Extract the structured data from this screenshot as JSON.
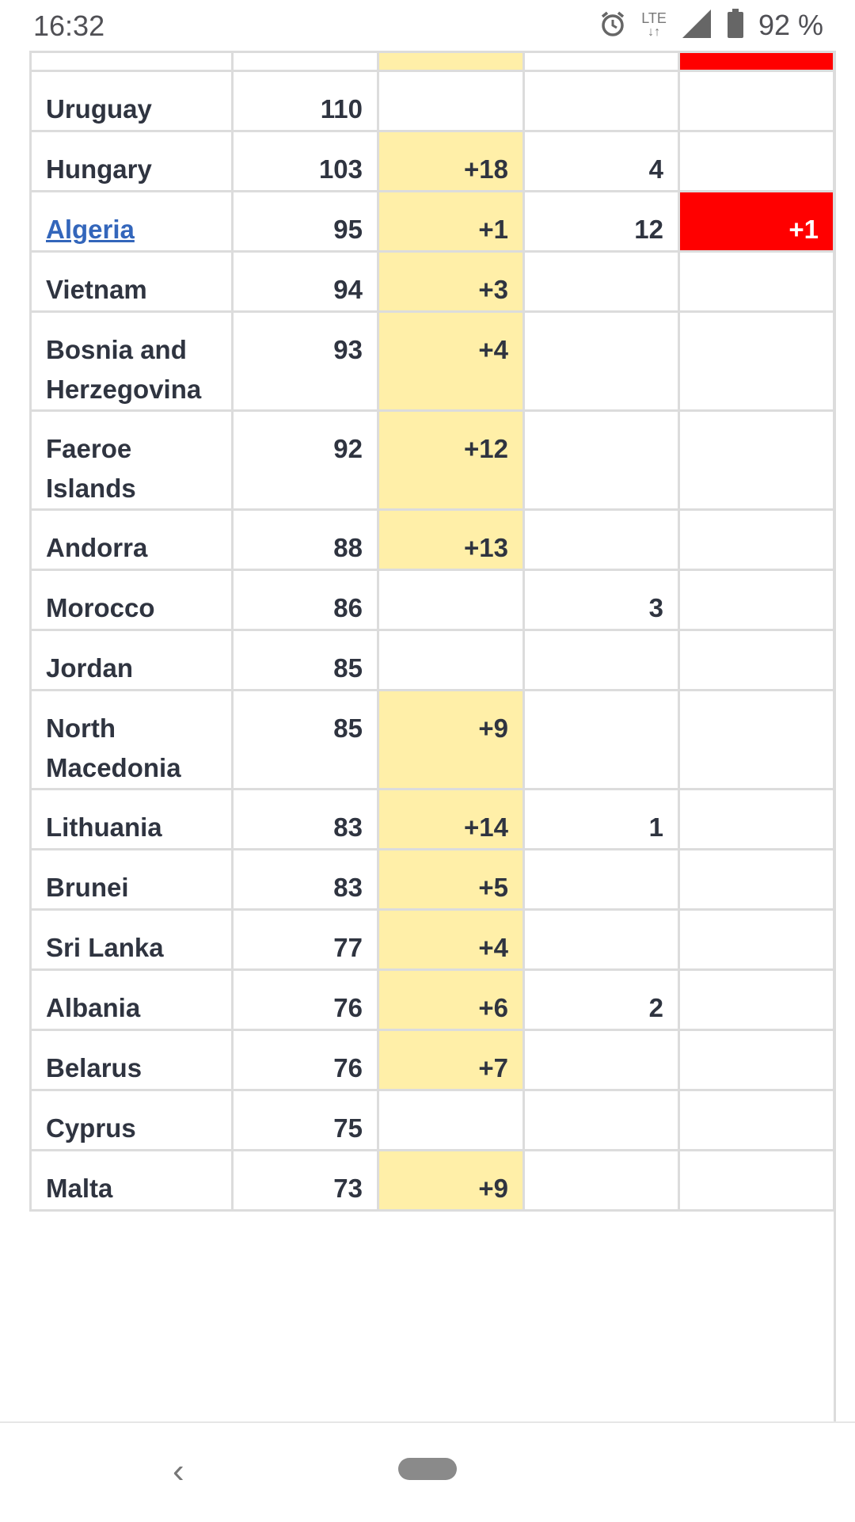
{
  "status_bar": {
    "time": "16:32",
    "network": "LTE",
    "battery_percent": "92 %",
    "icons": [
      "alarm-icon",
      "lte-icon",
      "signal-icon",
      "battery-icon"
    ]
  },
  "table": {
    "rows": [
      {
        "country": "Uruguay",
        "cases": "110",
        "new_cases": "",
        "deaths": "",
        "new_deaths": "",
        "link": false
      },
      {
        "country": "Hungary",
        "cases": "103",
        "new_cases": "+18",
        "deaths": "4",
        "new_deaths": "",
        "link": false
      },
      {
        "country": "Algeria",
        "cases": "95",
        "new_cases": "+1",
        "deaths": "12",
        "new_deaths": "+1",
        "link": true
      },
      {
        "country": "Vietnam",
        "cases": "94",
        "new_cases": "+3",
        "deaths": "",
        "new_deaths": "",
        "link": false
      },
      {
        "country": "Bosnia and Herzegovina",
        "cases": "93",
        "new_cases": "+4",
        "deaths": "",
        "new_deaths": "",
        "link": false
      },
      {
        "country": "Faeroe Islands",
        "cases": "92",
        "new_cases": "+12",
        "deaths": "",
        "new_deaths": "",
        "link": false
      },
      {
        "country": "Andorra",
        "cases": "88",
        "new_cases": "+13",
        "deaths": "",
        "new_deaths": "",
        "link": false
      },
      {
        "country": "Morocco",
        "cases": "86",
        "new_cases": "",
        "deaths": "3",
        "new_deaths": "",
        "link": false
      },
      {
        "country": "Jordan",
        "cases": "85",
        "new_cases": "",
        "deaths": "",
        "new_deaths": "",
        "link": false
      },
      {
        "country": "North Macedonia",
        "cases": "85",
        "new_cases": "+9",
        "deaths": "",
        "new_deaths": "",
        "link": false
      },
      {
        "country": "Lithuania",
        "cases": "83",
        "new_cases": "+14",
        "deaths": "1",
        "new_deaths": "",
        "link": false
      },
      {
        "country": "Brunei",
        "cases": "83",
        "new_cases": "+5",
        "deaths": "",
        "new_deaths": "",
        "link": false
      },
      {
        "country": "Sri Lanka",
        "cases": "77",
        "new_cases": "+4",
        "deaths": "",
        "new_deaths": "",
        "link": false
      },
      {
        "country": "Albania",
        "cases": "76",
        "new_cases": "+6",
        "deaths": "2",
        "new_deaths": "",
        "link": false
      },
      {
        "country": "Belarus",
        "cases": "76",
        "new_cases": "+7",
        "deaths": "",
        "new_deaths": "",
        "link": false
      },
      {
        "country": "Cyprus",
        "cases": "75",
        "new_cases": "",
        "deaths": "",
        "new_deaths": "",
        "link": false
      },
      {
        "country": "Malta",
        "cases": "73",
        "new_cases": "+9",
        "deaths": "",
        "new_deaths": "",
        "link": false
      }
    ]
  },
  "colors": {
    "highlight_new_cases": "#ffefa8",
    "highlight_new_deaths": "#ff0000",
    "link": "#3366bb",
    "text": "#2f3440"
  },
  "nav_bar": {
    "back_icon": "chevron-left-icon",
    "home_icon": "home-pill-icon"
  }
}
